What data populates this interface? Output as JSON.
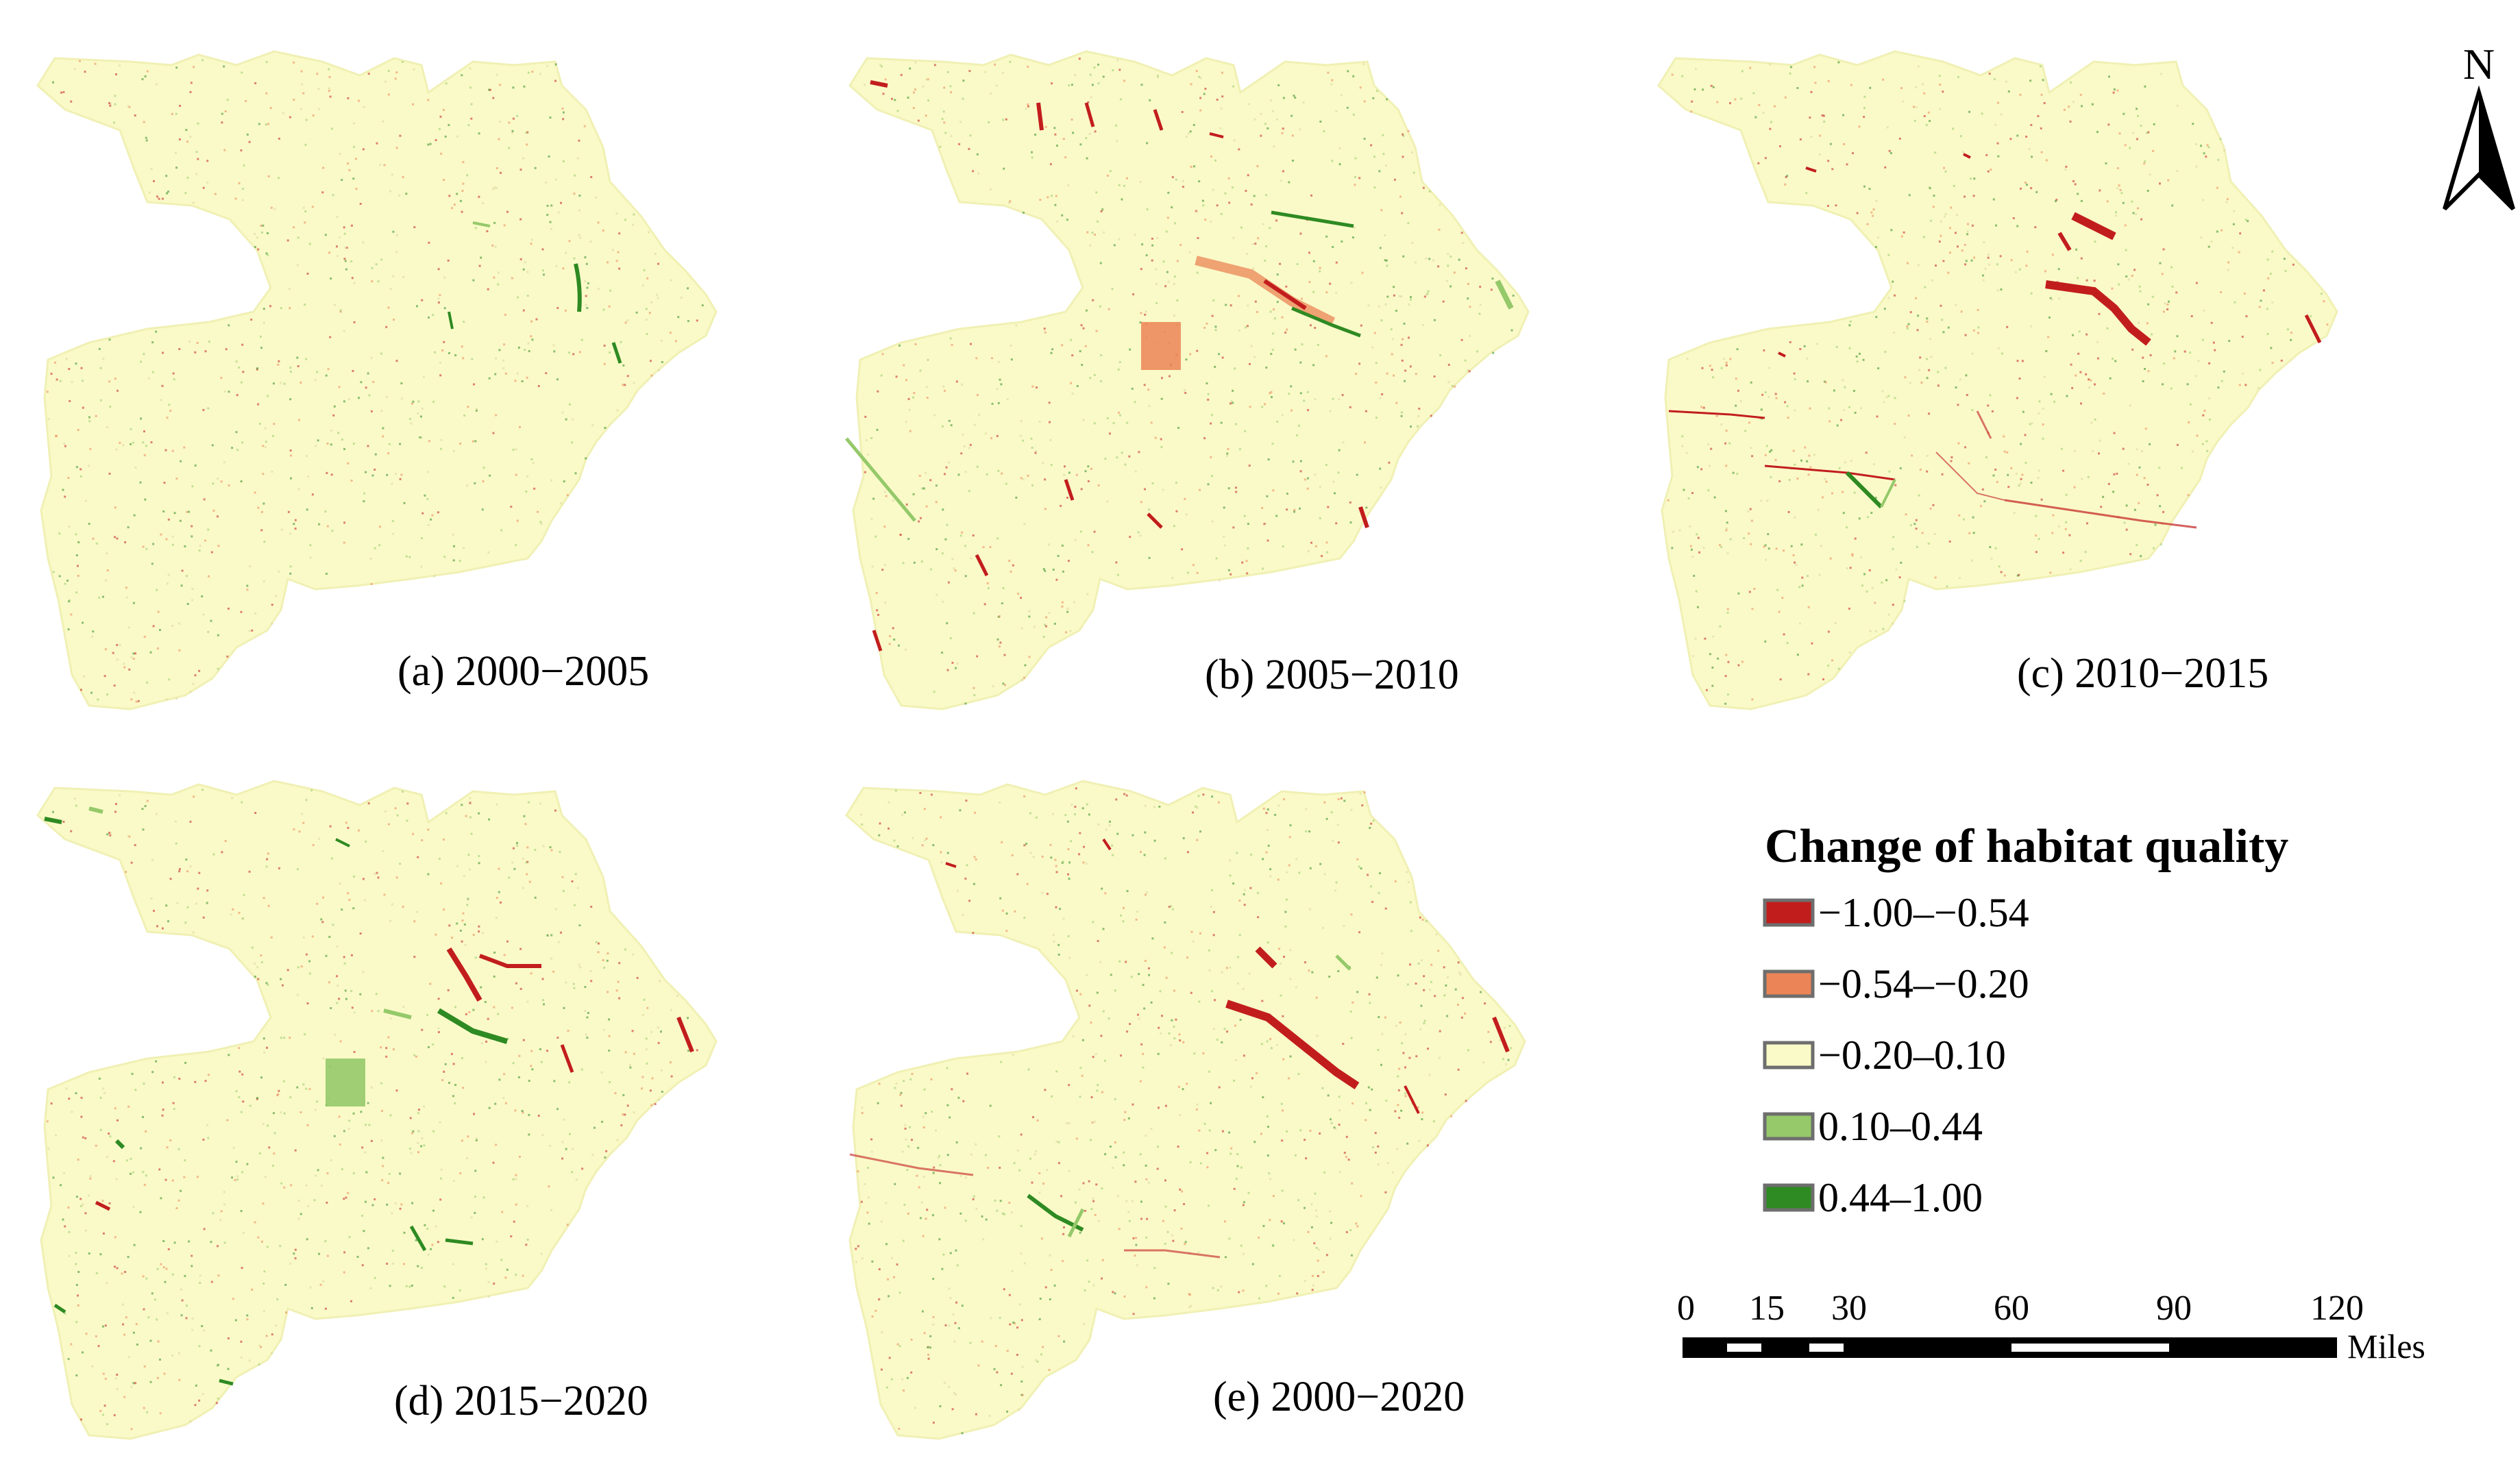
{
  "panels": [
    {
      "label": "(a) 2000−2005"
    },
    {
      "label": "(b) 2005−2010"
    },
    {
      "label": "(c) 2010−2015"
    },
    {
      "label": "(d) 2015−2020"
    },
    {
      "label": "(e) 2000−2020"
    }
  ],
  "legend": {
    "title": "Change of habitat quality",
    "items": [
      {
        "label": "−1.00–−0.54",
        "color": "#c21d1d"
      },
      {
        "label": "−0.54–−0.20",
        "color": "#eb8456"
      },
      {
        "label": "−0.20–0.10",
        "color": "#fafac8"
      },
      {
        "label": "0.10–0.44",
        "color": "#95c96a"
      },
      {
        "label": "0.44–1.00",
        "color": "#2e8a22"
      }
    ]
  },
  "scalebar": {
    "ticks": [
      "0",
      "15",
      "30",
      "60",
      "90",
      "120"
    ],
    "unit": "Miles"
  },
  "north_arrow": {
    "label": "N"
  },
  "colors": {
    "base": "#fafac8",
    "neg_strong": "#c21d1d",
    "neg": "#eb8456",
    "pos": "#95c96a",
    "pos_strong": "#2e8a22"
  }
}
